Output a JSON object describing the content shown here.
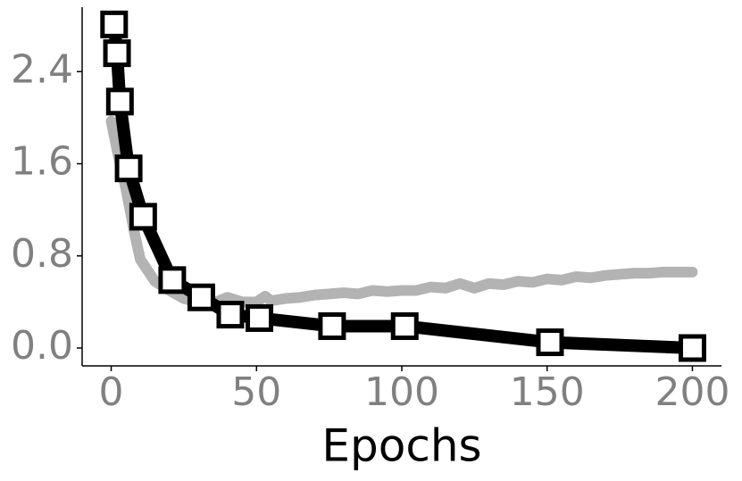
{
  "chart_data": {
    "type": "line",
    "x_label": "Epochs",
    "xlim": [
      -10,
      210
    ],
    "xticks": [
      0,
      50,
      100,
      150,
      200
    ],
    "ylim": [
      -0.155,
      2.96
    ],
    "yticks": [
      {
        "value": 0,
        "label": "0.0"
      },
      {
        "value": 0.8,
        "label": "0.8"
      },
      {
        "value": 1.6,
        "label": "1.6"
      },
      {
        "value": 2.4,
        "label": "2.4"
      }
    ],
    "series": [
      {
        "color": "#b3b3b3",
        "markers": false,
        "x": [
          0,
          2,
          5,
          8,
          10,
          15,
          20,
          25,
          30,
          35,
          40,
          45,
          50,
          53,
          55,
          60,
          65,
          70,
          75,
          80,
          85,
          90,
          95,
          100,
          105,
          110,
          115,
          120,
          125,
          130,
          135,
          140,
          145,
          150,
          155,
          160,
          165,
          170,
          175,
          180,
          185,
          190,
          195,
          200
        ],
        "values": [
          1.97,
          1.72,
          1.39,
          1.0,
          0.77,
          0.58,
          0.5,
          0.43,
          0.4,
          0.39,
          0.44,
          0.4,
          0.4,
          0.45,
          0.41,
          0.43,
          0.44,
          0.46,
          0.47,
          0.48,
          0.47,
          0.5,
          0.49,
          0.5,
          0.5,
          0.53,
          0.52,
          0.56,
          0.52,
          0.56,
          0.55,
          0.58,
          0.57,
          0.6,
          0.59,
          0.62,
          0.61,
          0.63,
          0.64,
          0.65,
          0.65,
          0.66,
          0.66,
          0.66
        ]
      },
      {
        "color": "#000000",
        "markers": true,
        "x": [
          1,
          2,
          3,
          6,
          11,
          21,
          31,
          41,
          51,
          76,
          101,
          151,
          200
        ],
        "values": [
          2.81,
          2.56,
          2.14,
          1.56,
          1.14,
          0.59,
          0.44,
          0.29,
          0.26,
          0.19,
          0.19,
          0.05,
          0.0
        ]
      }
    ]
  }
}
